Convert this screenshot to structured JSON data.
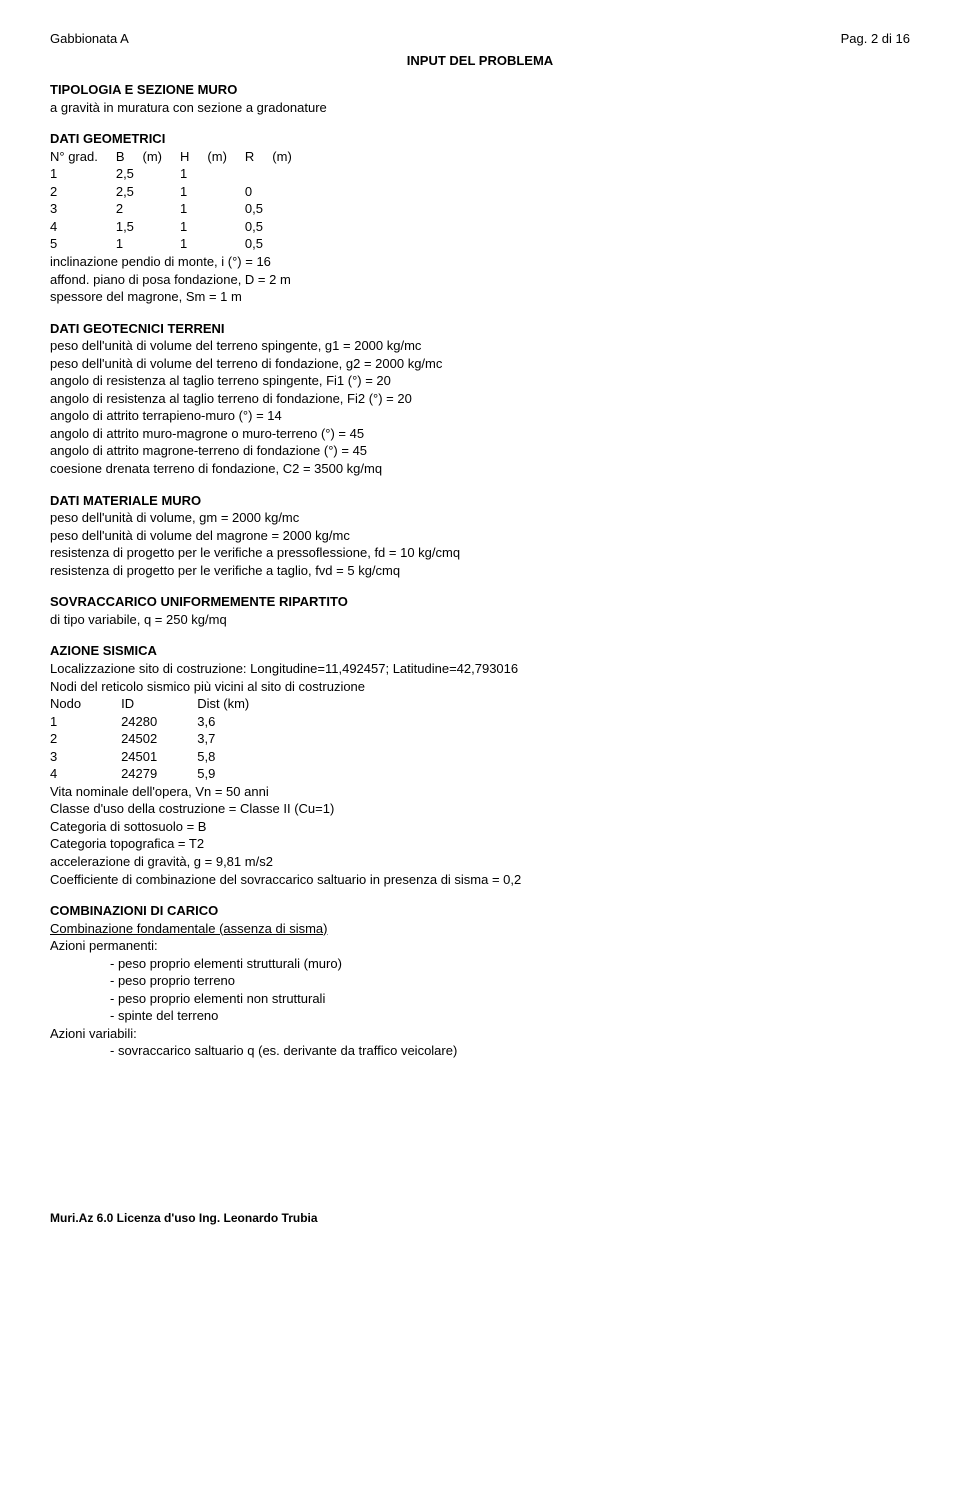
{
  "header": {
    "left": "Gabbionata A",
    "right": "Pag. 2 di 16"
  },
  "title": "INPUT DEL PROBLEMA",
  "tipologia": {
    "heading": "TIPOLOGIA E SEZIONE MURO",
    "text": "a gravità in muratura con sezione a gradonature"
  },
  "geometrici": {
    "heading": "DATI GEOMETRICI",
    "cols": {
      "c1": "N° grad.",
      "c2": "B",
      "c3": "(m)",
      "c4": "H",
      "c5": "(m)",
      "c6": "R",
      "c7": "(m)"
    },
    "rows": [
      {
        "n": "1",
        "b": "2,5",
        "h": "1",
        "r": ""
      },
      {
        "n": "2",
        "b": "2,5",
        "h": "1",
        "r": "0"
      },
      {
        "n": "3",
        "b": "2",
        "h": "1",
        "r": "0,5"
      },
      {
        "n": "4",
        "b": "1,5",
        "h": "1",
        "r": "0,5"
      },
      {
        "n": "5",
        "b": "1",
        "h": "1",
        "r": "0,5"
      }
    ],
    "lines": [
      "inclinazione pendio di monte, i (°) = 16",
      "affond. piano di posa fondazione, D = 2 m",
      "spessore del magrone, Sm = 1 m"
    ]
  },
  "geotecnici": {
    "heading": "DATI GEOTECNICI TERRENI",
    "lines": [
      "peso dell'unità di volume del terreno spingente, g1 = 2000 kg/mc",
      "peso dell'unità di volume del terreno di fondazione, g2 = 2000 kg/mc",
      "angolo di resistenza al taglio terreno spingente, Fi1 (°) = 20",
      "angolo di resistenza al taglio terreno di fondazione, Fi2 (°) = 20",
      "angolo di attrito terrapieno-muro (°) = 14",
      "angolo di attrito muro-magrone o muro-terreno (°) = 45",
      "angolo di attrito magrone-terreno di fondazione (°) = 45",
      "coesione drenata terreno di fondazione, C2 = 3500 kg/mq"
    ]
  },
  "materiale": {
    "heading": "DATI MATERIALE MURO",
    "lines": [
      "peso dell'unità di volume, gm = 2000 kg/mc",
      "peso dell'unità di volume del magrone = 2000 kg/mc",
      "resistenza di progetto per le verifiche a pressoflessione, fd = 10 kg/cmq",
      "resistenza di progetto per le verifiche a taglio, fvd = 5 kg/cmq"
    ]
  },
  "sovraccarico": {
    "heading": "SOVRACCARICO UNIFORMEMENTE RIPARTITO",
    "line": "di tipo variabile, q = 250 kg/mq"
  },
  "sismica": {
    "heading": "AZIONE SISMICA",
    "loc": "Localizzazione sito di costruzione: Longitudine=11,492457; Latitudine=42,793016",
    "reticolo": "Nodi del reticolo sismico più vicini al sito di costruzione",
    "cols": {
      "c1": "Nodo",
      "c2": "ID",
      "c3": "Dist (km)"
    },
    "rows": [
      {
        "n": "1",
        "id": "24280",
        "d": "3,6"
      },
      {
        "n": "2",
        "id": "24502",
        "d": "3,7"
      },
      {
        "n": "3",
        "id": "24501",
        "d": "5,8"
      },
      {
        "n": "4",
        "id": "24279",
        "d": "5,9"
      }
    ],
    "lines": [
      "Vita nominale dell'opera, Vn = 50 anni",
      "Classe d'uso della costruzione = Classe II (Cu=1)",
      "Categoria di sottosuolo = B",
      "Categoria topografica = T2",
      "accelerazione di gravità, g = 9,81 m/s2",
      "Coefficiente di combinazione del sovraccarico saltuario in presenza di sisma = 0,2"
    ]
  },
  "combinazioni": {
    "heading": "COMBINAZIONI DI CARICO",
    "sub": "Combinazione fondamentale (assenza di sisma)",
    "perm_label": "Azioni permanenti:",
    "perm": [
      "- peso proprio elementi strutturali (muro)",
      "- peso proprio terreno",
      "- peso proprio elementi non strutturali",
      "- spinte del terreno"
    ],
    "var_label": "Azioni variabili:",
    "var": [
      "- sovraccarico saltuario q (es. derivante da traffico veicolare)"
    ]
  },
  "footer": "Muri.Az 6.0 Licenza d'uso Ing. Leonardo Trubia"
}
